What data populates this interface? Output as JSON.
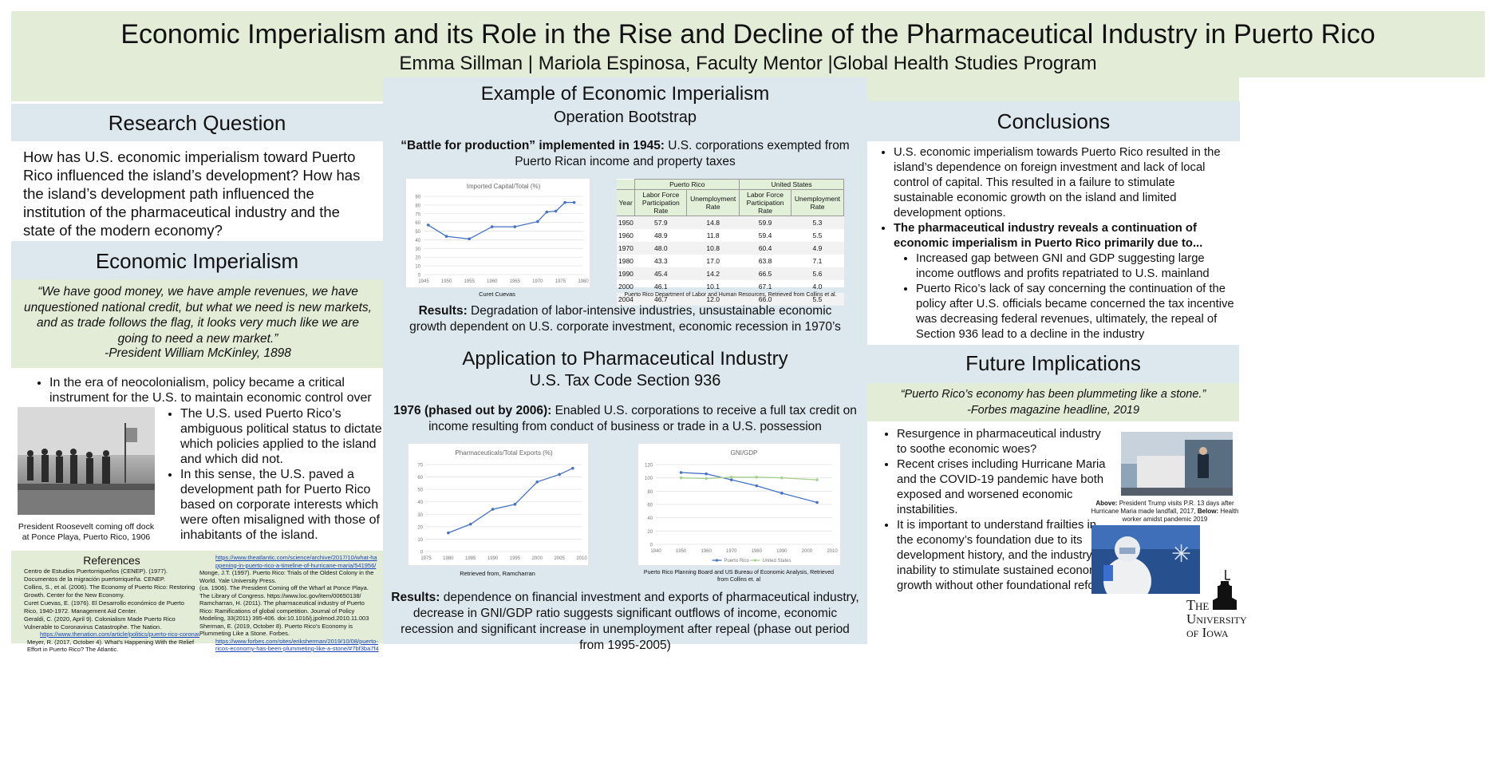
{
  "header": {
    "title": "Economic Imperialism and its Role in the Rise and Decline of the Pharmaceutical Industry in Puerto Rico",
    "authors": "Emma Sillman | Mariola Espinosa, Faculty Mentor |Global Health Studies Program"
  },
  "research_question": {
    "heading": "Research Question",
    "text": "How has U.S. economic imperialism toward Puerto Rico influenced the island’s development?  How has the island’s development path influenced the institution of the pharmaceutical industry and the state of the modern economy?"
  },
  "economic_imperialism": {
    "heading": "Economic Imperialism",
    "quote": "“We have good money, we have ample revenues, we have unquestioned national credit, but what we need is new markets, and as trade follows the flag, it looks very much like we are going to need a new market.”",
    "quote_attr": "-President William McKinley, 1898",
    "bullet1": "In the era of neocolonialism, policy became a critical instrument for the U.S. to maintain economic control over Puerto Rico.",
    "bullet2": "The U.S. used Puerto Rico’s ambiguous political status to dictate which policies applied to the island and which did not.",
    "bullet3": "In this sense, the U.S. paved a development path for Puerto Rico based on corporate interests which were often misaligned with those of inhabitants of the island.",
    "photo_caption": "President Roosevelt coming off dock at Ponce Playa, Puerto Rico, 1906"
  },
  "references": {
    "heading": "References",
    "left": [
      "Centro de Estudios Puertorriqueños (CENEP). (1977). Documentos de la migración puertorriqueña. CENEP.",
      "Collins, S., et al. (2006). The Economy of Puerto Rico: Restoring Growth. Center for the New Economy.",
      "Curet Cuevas, E. (1976). El Desarrollo económico de Puerto Rico, 1940-1972. Management Aid Center.",
      "Geraldi, C. (2020, April 9). Colonialism Made Puerto Rico Vulnerable to Coronavirus Catastrophe. The Nation.",
      "https://www.thenation.com/article/politics/puerto-rico-coronavirus/",
      "Meyer, R. (2017, October 4). What’s Happening With the Relief Effort in Puerto Rico? The Atlantic."
    ],
    "right": [
      "https://www.theatlantic.com/science/archive/2017/10/what-happening-in-puerto-rico-a-timeline-of-hurricane-maria/541956/",
      "Monge, J.T. (1997). Puerto Rico: Trials of the Oldest Colony in the World. Yale University Press.",
      "(ca. 1906). The President Coming off the Wharf at Ponce Playa. The Library of Congress. https://www.loc.gov/item/00650138/",
      "Ramcharran, H. (2011). The pharmaceutical industry of Puerto Rico: Ramifications of global competition. Journal of Policy Modeling, 33(2011) 395-406. doi:10.1016/j.jpolmod.2010.11.003",
      "Sherman, E. (2019, October 8). Puerto Rico’s Economy is Plummeting Like a Stone. Forbes.",
      "https://www.forbes.com/sites/eriksherman/2019/10/08/puerto-ricos-economy-has-been-plummeting-like-a-stone/#7bf3ba7f4dfe"
    ]
  },
  "example": {
    "heading": "Example of Economic Imperialism",
    "subheading": "Operation Bootstrap",
    "intro_bold": "“Battle for production” implemented in 1945:",
    "intro_rest": " U.S. corporations exempted from Puerto Rican income and property taxes",
    "chart_caption": "Curet Cuevas",
    "table_caption": "Puerto Rico Department of Labor and Human Resources, Retrieved from Collins et al.",
    "results_bold": "Results:",
    "results_rest": " Degradation of labor-intensive industries, unsustainable economic growth dependent on U.S. corporate investment, economic recession in 1970’s"
  },
  "labor_table": {
    "group_headers": [
      "Puerto Rico",
      "United States"
    ],
    "col_headers": [
      "Year",
      "Labor Force Participation Rate",
      "Unemployment Rate",
      "Labor Force Participation Rate",
      "Unemployment Rate"
    ],
    "rows": [
      [
        "1950",
        "57.9",
        "14.8",
        "59.9",
        "5.3"
      ],
      [
        "1960",
        "48.9",
        "11.8",
        "59.4",
        "5.5"
      ],
      [
        "1970",
        "48.0",
        "10.8",
        "60.4",
        "4.9"
      ],
      [
        "1980",
        "43.3",
        "17.0",
        "63.8",
        "7.1"
      ],
      [
        "1990",
        "45.4",
        "14.2",
        "66.5",
        "5.6"
      ],
      [
        "2000",
        "46.1",
        "10.1",
        "67.1",
        "4.0"
      ],
      [
        "2004",
        "46.7",
        "12.0",
        "66.0",
        "5.5"
      ]
    ]
  },
  "application": {
    "heading": "Application to Pharmaceutical Industry",
    "subheading": "U.S. Tax Code Section 936",
    "intro_bold": "1976 (phased out by 2006):",
    "intro_rest": " Enabled U.S. corporations to receive a full tax credit on income resulting from conduct of business or trade in a U.S. possession",
    "caption_left": "Retrieved from, Ramcharran",
    "caption_right": "Puerto Rico Planning Board and US Bureau of Economic Analysis, Retrieved from Collins et. al",
    "results_bold": "Results:",
    "results_rest": "  dependence on financial investment and exports of pharmaceutical industry, decrease in GNI/GDP ratio suggests significant outflows of income, economic recession and significant increase in unemployment after repeal (phase out period from 1995-2005)"
  },
  "conclusions": {
    "heading": "Conclusions",
    "bullet1": "U.S. economic imperialism towards Puerto Rico resulted in the island’s dependence on foreign investment and lack of local control of capital.  This resulted in a failure to stimulate sustainable economic growth on the island and limited development options.",
    "bullet2": "The pharmaceutical industry reveals a continuation of economic imperialism in Puerto Rico primarily due to...",
    "sub1": "Increased gap between GNI and GDP suggesting large income outflows and profits repatriated to U.S. mainland",
    "sub2": "Puerto Rico’s lack of say concerning the continuation of the policy after U.S. officials became concerned the tax incentive was decreasing federal revenues, ultimately, the repeal of Section 936 lead to a decline in the industry"
  },
  "future": {
    "heading": "Future Implications",
    "quote": "“Puerto Rico’s economy has been plummeting like a stone.”",
    "quote_attr": "-Forbes magazine headline, 2019",
    "bullet1": "Resurgence in pharmaceutical industry to soothe economic woes?",
    "bullet2": "Recent crises including Hurricane Maria and the COVID-19 pandemic have both exposed and worsened economic instabilities.",
    "bullet3": "It is important to understand frailties in the economy’s foundation due to its development history, and the industry’s inability to stimulate sustained economic growth without other foundational reform.",
    "caption_above_bold": "Above:",
    "caption_above": " President Trump visits P.R. 13 days after Hurricane Maria made landfall, 2017, ",
    "caption_below_bold": "Below:",
    "caption_below": " Health worker amidst pandemic 2019"
  },
  "logo": {
    "line1": "The",
    "line2": "University",
    "line3": "of Iowa"
  },
  "chart_data": [
    {
      "type": "line",
      "title": "Imported Capital/Total (%)",
      "x": [
        1946,
        1950,
        1955,
        1960,
        1965,
        1970,
        1972,
        1974,
        1976,
        1978
      ],
      "values": [
        57,
        44,
        41,
        55,
        55,
        61,
        72,
        73,
        83,
        83
      ],
      "xticks": [
        1945,
        1950,
        1955,
        1960,
        1965,
        1970,
        1975,
        1980
      ],
      "yticks": [
        0,
        10,
        20,
        30,
        40,
        50,
        60,
        70,
        80,
        90
      ],
      "xlim": [
        1945,
        1980
      ],
      "ylim": [
        0,
        90
      ],
      "color": "#4472c4"
    },
    {
      "type": "line",
      "title": "Pharmaceuticals/Total Exports (%)",
      "x": [
        1980,
        1985,
        1990,
        1995,
        2000,
        2005,
        2008
      ],
      "values": [
        15,
        22,
        34,
        38,
        56,
        62,
        67
      ],
      "xticks": [
        1975,
        1980,
        1985,
        1990,
        1995,
        2000,
        2005,
        2010
      ],
      "yticks": [
        0,
        10,
        20,
        30,
        40,
        50,
        60,
        70
      ],
      "xlim": [
        1975,
        2010
      ],
      "ylim": [
        0,
        70
      ],
      "color": "#4472c4"
    },
    {
      "type": "line",
      "title": "GNI/GDP",
      "series": [
        {
          "name": "Puerto Rico",
          "x": [
            1950,
            1960,
            1970,
            1980,
            1990,
            2004
          ],
          "values": [
            108,
            106,
            97,
            88,
            77,
            63
          ],
          "color": "#4472c4"
        },
        {
          "name": "United States",
          "x": [
            1950,
            1960,
            1970,
            1980,
            1990,
            2004
          ],
          "values": [
            100,
            99,
            101,
            101,
            100,
            97
          ],
          "color": "#a9d18e"
        }
      ],
      "xticks": [
        1940,
        1950,
        1960,
        1970,
        1980,
        1990,
        2000,
        2010
      ],
      "yticks": [
        0,
        20,
        40,
        60,
        80,
        100,
        120
      ],
      "xlim": [
        1940,
        2010
      ],
      "ylim": [
        0,
        120
      ]
    }
  ]
}
